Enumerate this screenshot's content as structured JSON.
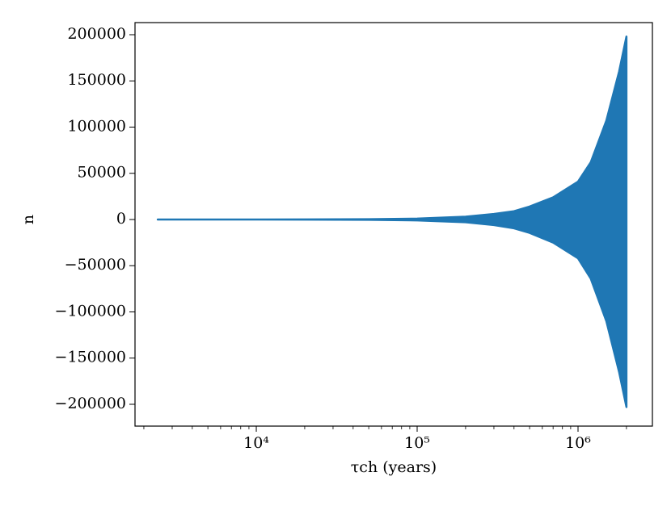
{
  "chart_data": {
    "type": "band",
    "xlabel": "τch (years)",
    "ylabel": "n",
    "color": "#1f77b4",
    "xscale": "log",
    "x": [
      2440,
      10000,
      50000,
      100000,
      200000,
      300000,
      400000,
      500000,
      700000,
      1000000,
      1200000,
      1500000,
      1800000,
      2000000
    ],
    "upper": [
      0,
      0,
      300,
      1000,
      3000,
      6000,
      9000,
      14000,
      24000,
      41000,
      62000,
      107000,
      160000,
      198000
    ],
    "lower": [
      0,
      0,
      -300,
      -1000,
      -3000,
      -6000,
      -9500,
      -14500,
      -25000,
      -42000,
      -64000,
      -110000,
      -165000,
      -203000
    ],
    "xlim": [
      1762,
      2900000
    ],
    "ylim": [
      -223600,
      213100
    ],
    "xticks": [
      {
        "value": 10000,
        "label": "10⁴"
      },
      {
        "value": 100000,
        "label": "10⁵"
      },
      {
        "value": 1000000,
        "label": "10⁶"
      }
    ],
    "yticks": [
      {
        "value": -200000,
        "label": "−200000"
      },
      {
        "value": -150000,
        "label": "−150000"
      },
      {
        "value": -100000,
        "label": "−100000"
      },
      {
        "value": -50000,
        "label": "−50000"
      },
      0,
      50000,
      100000,
      150000,
      200000
    ]
  }
}
